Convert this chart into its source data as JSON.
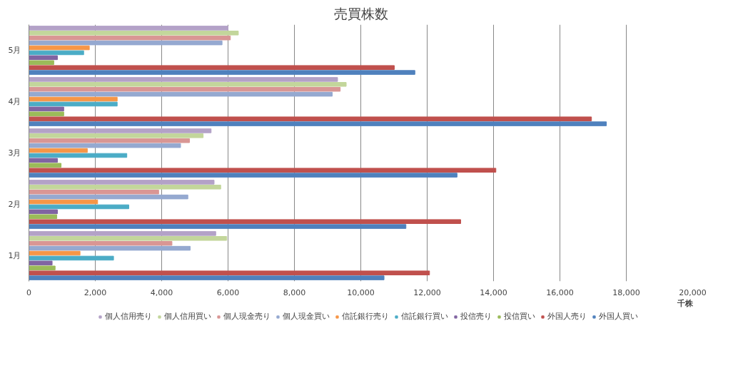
{
  "chart_data": {
    "type": "bar",
    "orientation": "horizontal",
    "title": "売買株数",
    "categories": [
      "5月",
      "4月",
      "3月",
      "2月",
      "1月"
    ],
    "series": [
      {
        "name": "個人信用売り",
        "color": "#b3a2c7",
        "values": [
          6000,
          9300,
          5490,
          5580,
          5630
        ]
      },
      {
        "name": "個人信用買い",
        "color": "#c3d69b",
        "values": [
          6310,
          9560,
          5250,
          5780,
          5960
        ]
      },
      {
        "name": "個人現金売り",
        "color": "#d99694",
        "values": [
          6070,
          9380,
          4840,
          3910,
          4310
        ]
      },
      {
        "name": "個人現金買い",
        "color": "#95a9d0",
        "values": [
          5820,
          9140,
          4570,
          4790,
          4860
        ]
      },
      {
        "name": "信託銀行売り",
        "color": "#f79646",
        "values": [
          1820,
          2660,
          1760,
          2070,
          1540
        ]
      },
      {
        "name": "信託銀行買い",
        "color": "#4bacc6",
        "values": [
          1650,
          2660,
          2950,
          3010,
          2550
        ]
      },
      {
        "name": "投信売り",
        "color": "#8064a2",
        "values": [
          860,
          1050,
          860,
          860,
          700
        ]
      },
      {
        "name": "投信買い",
        "color": "#9bbb59",
        "values": [
          750,
          1050,
          970,
          840,
          790
        ]
      },
      {
        "name": "外国人売り",
        "color": "#c0504d",
        "values": [
          11010,
          16950,
          14070,
          13010,
          12070
        ]
      },
      {
        "name": "外国人買い",
        "color": "#4f81bd",
        "values": [
          11630,
          17400,
          12900,
          11360,
          10700
        ]
      }
    ],
    "xlim": [
      0,
      20000
    ],
    "xticks": [
      0,
      {
        "value": 2000,
        "label": "2,000"
      },
      {
        "value": 4000,
        "label": "4,000"
      },
      {
        "value": 6000,
        "label": "6,000"
      },
      {
        "value": 8000,
        "label": "8,000"
      },
      {
        "value": 10000,
        "label": "10,000"
      },
      {
        "value": 12000,
        "label": "12,000"
      },
      {
        "value": 14000,
        "label": "14,000"
      },
      {
        "value": 16000,
        "label": "16,000"
      },
      {
        "value": 18000,
        "label": "18,000"
      },
      {
        "value": 20000,
        "label": "20,000"
      }
    ],
    "annotations": [
      "千株"
    ],
    "grid": "x",
    "legend": "bottom"
  }
}
